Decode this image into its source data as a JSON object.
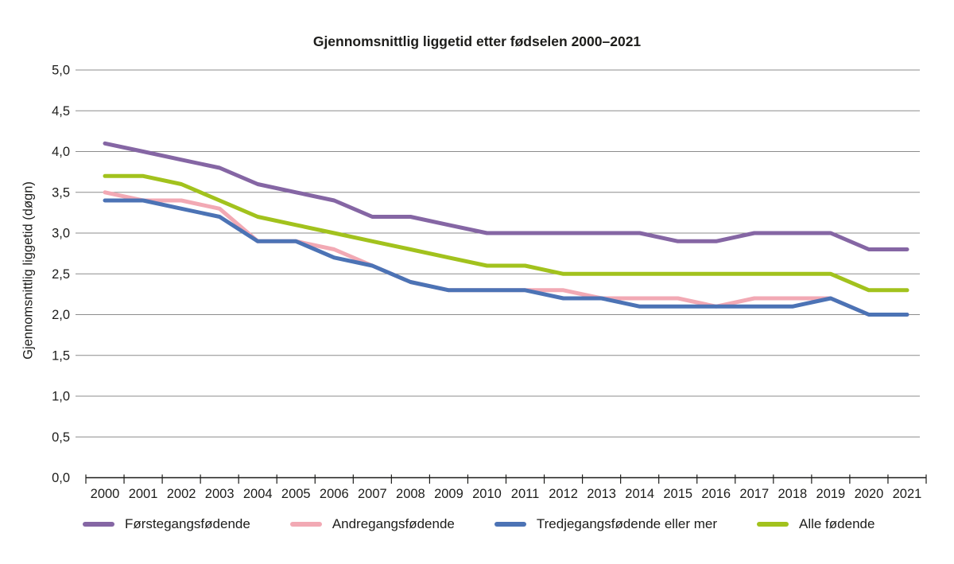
{
  "chart_data": {
    "type": "line",
    "title": "Gjennomsnittlig liggetid etter fødselen 2000–2021",
    "xlabel": "",
    "ylabel": "Gjennomsnittlig liggetid (døgn)",
    "ylim": [
      0.0,
      5.0
    ],
    "ytick_step": 0.5,
    "ytick_labels": [
      "0,0",
      "0,5",
      "1,0",
      "1,5",
      "2,0",
      "2,5",
      "3,0",
      "3,5",
      "4,0",
      "4,5",
      "5,0"
    ],
    "decimal_separator": ",",
    "grid": "horizontal",
    "legend_position": "bottom",
    "categories": [
      "2000",
      "2001",
      "2002",
      "2003",
      "2004",
      "2005",
      "2006",
      "2007",
      "2008",
      "2009",
      "2010",
      "2011",
      "2012",
      "2013",
      "2014",
      "2015",
      "2016",
      "2017",
      "2018",
      "2019",
      "2020",
      "2021"
    ],
    "series": [
      {
        "name": "Førstegangsfødende",
        "color": "#8566A4",
        "values": [
          4.1,
          4.0,
          3.9,
          3.8,
          3.6,
          3.5,
          3.4,
          3.2,
          3.2,
          3.1,
          3.0,
          3.0,
          3.0,
          3.0,
          3.0,
          2.9,
          2.9,
          3.0,
          3.0,
          3.0,
          2.8,
          2.8
        ]
      },
      {
        "name": "Andregangsfødende",
        "color": "#F2A9B4",
        "values": [
          3.5,
          3.4,
          3.4,
          3.3,
          2.9,
          2.9,
          2.8,
          2.6,
          2.4,
          2.3,
          2.3,
          2.3,
          2.3,
          2.2,
          2.2,
          2.2,
          2.1,
          2.2,
          2.2,
          2.2,
          2.0,
          2.0
        ]
      },
      {
        "name": "Tredjegangsfødende eller mer",
        "color": "#4C73B5",
        "values": [
          3.4,
          3.4,
          3.3,
          3.2,
          2.9,
          2.9,
          2.7,
          2.6,
          2.4,
          2.3,
          2.3,
          2.3,
          2.2,
          2.2,
          2.1,
          2.1,
          2.1,
          2.1,
          2.1,
          2.2,
          2.0,
          2.0
        ]
      },
      {
        "name": "Alle fødende",
        "color": "#A2C21D",
        "values": [
          3.7,
          3.7,
          3.6,
          3.4,
          3.2,
          3.1,
          3.0,
          2.9,
          2.8,
          2.7,
          2.6,
          2.6,
          2.5,
          2.5,
          2.5,
          2.5,
          2.5,
          2.5,
          2.5,
          2.5,
          2.3,
          2.3
        ]
      }
    ]
  },
  "colors": {
    "background": "#ffffff",
    "axis": "#1d1d1b",
    "grid": "#8c8c8c",
    "text": "#1d1d1b"
  }
}
